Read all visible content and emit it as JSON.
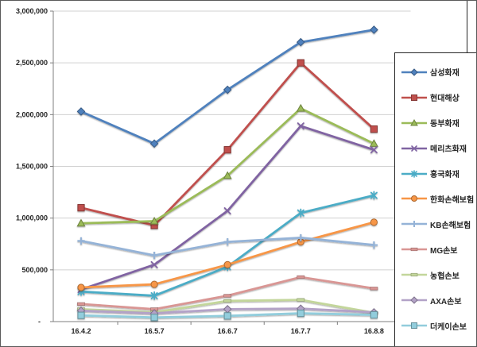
{
  "chart_data": {
    "type": "line",
    "title": "",
    "xlabel": "",
    "ylabel": "",
    "categories": [
      "16.4.2",
      "16.5.7",
      "16.6.7",
      "16.7.7",
      "16.8.8"
    ],
    "series": [
      {
        "name": "삼성화재",
        "color": "#4F81BD",
        "marker": "diamond",
        "values": [
          2030000,
          1720000,
          2240000,
          2700000,
          2820000
        ]
      },
      {
        "name": "현대해상",
        "color": "#C0504D",
        "marker": "square",
        "values": [
          1100000,
          930000,
          1660000,
          2500000,
          1860000
        ]
      },
      {
        "name": "동부화재",
        "color": "#9BBB59",
        "marker": "triangle",
        "values": [
          950000,
          970000,
          1410000,
          2060000,
          1720000
        ]
      },
      {
        "name": "메리츠화재",
        "color": "#8064A2",
        "marker": "x",
        "values": [
          310000,
          550000,
          1070000,
          1890000,
          1660000
        ]
      },
      {
        "name": "흥국화재",
        "color": "#4BACC6",
        "marker": "asterisk",
        "values": [
          290000,
          250000,
          530000,
          1050000,
          1220000
        ]
      },
      {
        "name": "한화손해보험",
        "color": "#F79646",
        "marker": "circle",
        "values": [
          330000,
          360000,
          550000,
          770000,
          960000
        ]
      },
      {
        "name": "KB손해보험",
        "color": "#95B3D7",
        "marker": "plus",
        "values": [
          780000,
          640000,
          770000,
          810000,
          740000
        ]
      },
      {
        "name": "MG손보",
        "color": "#D99694",
        "marker": "dash",
        "values": [
          170000,
          120000,
          250000,
          430000,
          320000
        ]
      },
      {
        "name": "농협손보",
        "color": "#C3D69B",
        "marker": "dash",
        "values": [
          120000,
          90000,
          200000,
          210000,
          85000
        ]
      },
      {
        "name": "AXA손보",
        "color": "#B3A2C7",
        "marker": "diamond",
        "values": [
          105000,
          80000,
          120000,
          125000,
          90000
        ]
      },
      {
        "name": "더케이손보",
        "color": "#92CDDC",
        "marker": "square",
        "values": [
          60000,
          40000,
          55000,
          80000,
          65000
        ]
      }
    ],
    "ylim": [
      0,
      3000000
    ],
    "ytick_interval": 500000,
    "ytick_labels_top_to_bottom": [
      "3,000,000",
      "2,500,000",
      "2,000,000",
      "1,500,000",
      "1,000,000",
      "500,000",
      "-"
    ],
    "grid": "horizontal",
    "legend_position": "right",
    "colors": {
      "axis": "#7F7F7F",
      "gridline": "#D0D0D0",
      "tick_text": "#1F1F1F",
      "legend_border": "#262626",
      "outer_border": "#595959",
      "background": "#FFFFFF"
    }
  }
}
